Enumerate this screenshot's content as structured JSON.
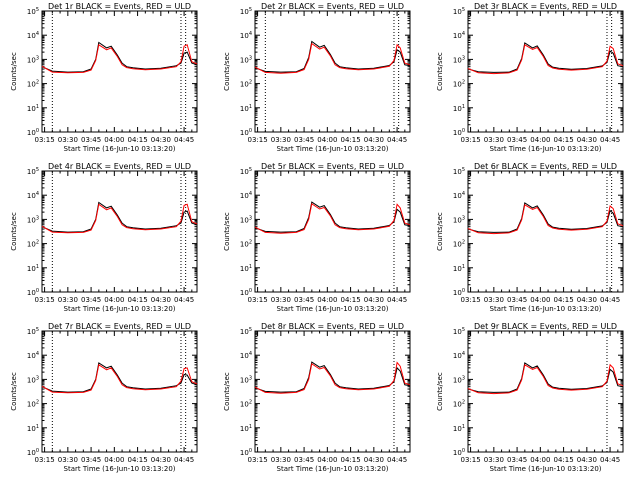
{
  "figure": {
    "colors": {
      "events": "#000000",
      "uld": "#ff0000",
      "background": "#ffffff",
      "axes": "#000000"
    }
  },
  "chart_data": [
    {
      "type": "line",
      "title": "Det 1r BLACK = Events, RED = ULD",
      "xlabel": "Start Time (16-Jun-10 03:13:20)",
      "ylabel": "Counts/sec",
      "xlim": [
        "03:13:20",
        "04:53:20"
      ],
      "x_ticks": [
        "03:15",
        "03:30",
        "03:45",
        "04:00",
        "04:15",
        "04:30",
        "04:45"
      ],
      "y_scale": "log",
      "ylim": [
        1,
        100000
      ],
      "y_ticks": [
        "10^0",
        "10^1",
        "10^2",
        "10^3",
        "10^4",
        "10^5"
      ],
      "vertical_dotted_lines": [
        "03:20",
        "04:43",
        "04:46"
      ],
      "x": [
        "03:13:20",
        "03:20",
        "03:30",
        "03:40",
        "03:45",
        "03:48",
        "03:50",
        "03:55",
        "03:58",
        "04:02",
        "04:05",
        "04:08",
        "04:12",
        "04:20",
        "04:30",
        "04:40",
        "04:43",
        "04:45",
        "04:47",
        "04:50",
        "04:53:20"
      ],
      "series": [
        {
          "name": "Events",
          "color": "#000000",
          "values": [
            500,
            330,
            300,
            310,
            400,
            1000,
            5000,
            3000,
            3500,
            1500,
            700,
            500,
            450,
            400,
            430,
            550,
            700,
            1800,
            2000,
            700,
            600
          ]
        },
        {
          "name": "ULD",
          "color": "#ff0000",
          "values": [
            520,
            300,
            280,
            290,
            360,
            900,
            4000,
            2500,
            3000,
            1300,
            600,
            460,
            410,
            370,
            400,
            500,
            800,
            3500,
            4000,
            800,
            650
          ]
        }
      ]
    },
    {
      "type": "line",
      "title": "Det 2r BLACK = Events, RED = ULD",
      "xlabel": "Start Time (16-Jun-10 03:13:20)",
      "ylabel": "Counts/sec",
      "xlim": [
        "03:13:20",
        "04:53:20"
      ],
      "x_ticks": [
        "03:15",
        "03:30",
        "03:45",
        "04:00",
        "04:15",
        "04:30",
        "04:45"
      ],
      "y_scale": "log",
      "ylim": [
        1,
        100000
      ],
      "y_ticks": [
        "10^0",
        "10^1",
        "10^2",
        "10^3",
        "10^4",
        "10^5"
      ],
      "vertical_dotted_lines": [
        "03:20",
        "04:43",
        "04:46"
      ],
      "x": [
        "03:13:20",
        "03:20",
        "03:30",
        "03:40",
        "03:45",
        "03:48",
        "03:50",
        "03:55",
        "03:58",
        "04:02",
        "04:05",
        "04:08",
        "04:12",
        "04:20",
        "04:30",
        "04:40",
        "04:43",
        "04:45",
        "04:47",
        "04:50",
        "04:53:20"
      ],
      "series": [
        {
          "name": "Events",
          "color": "#000000",
          "values": [
            450,
            320,
            300,
            310,
            420,
            1200,
            5500,
            3200,
            3800,
            1600,
            700,
            500,
            450,
            400,
            430,
            560,
            800,
            2500,
            2000,
            600,
            550
          ]
        },
        {
          "name": "ULD",
          "color": "#ff0000",
          "values": [
            480,
            290,
            270,
            290,
            380,
            1000,
            4500,
            2700,
            3200,
            1400,
            600,
            460,
            410,
            370,
            400,
            520,
            900,
            4000,
            3000,
            700,
            600
          ]
        }
      ]
    },
    {
      "type": "line",
      "title": "Det 3r BLACK = Events, RED = ULD",
      "xlabel": "Start Time (16-Jun-10 03:13:20)",
      "ylabel": "Counts/sec",
      "xlim": [
        "03:13:20",
        "04:53:20"
      ],
      "x_ticks": [
        "03:15",
        "03:30",
        "03:45",
        "04:00",
        "04:15",
        "04:30",
        "04:45"
      ],
      "y_scale": "log",
      "ylim": [
        1,
        100000
      ],
      "y_ticks": [
        "10^0",
        "10^1",
        "10^2",
        "10^3",
        "10^4",
        "10^5"
      ],
      "vertical_dotted_lines": [
        "04:43",
        "04:46"
      ],
      "x": [
        "03:13:20",
        "03:20",
        "03:30",
        "03:40",
        "03:45",
        "03:48",
        "03:50",
        "03:55",
        "03:58",
        "04:02",
        "04:05",
        "04:08",
        "04:12",
        "04:20",
        "04:30",
        "04:40",
        "04:43",
        "04:45",
        "04:47",
        "04:50",
        "04:53:20"
      ],
      "series": [
        {
          "name": "Events",
          "color": "#000000",
          "values": [
            400,
            310,
            290,
            300,
            400,
            1100,
            4800,
            3000,
            3600,
            1500,
            650,
            480,
            430,
            390,
            420,
            540,
            750,
            2200,
            1800,
            550,
            500
          ]
        },
        {
          "name": "ULD",
          "color": "#ff0000",
          "values": [
            420,
            280,
            260,
            280,
            360,
            950,
            4000,
            2600,
            3100,
            1300,
            560,
            440,
            390,
            360,
            390,
            500,
            850,
            3500,
            2800,
            650,
            550
          ]
        }
      ]
    },
    {
      "type": "line",
      "title": "Det 4r BLACK = Events, RED = ULD",
      "xlabel": "Start Time (16-Jun-10 03:13:20)",
      "ylabel": "Counts/sec",
      "xlim": [
        "03:13:20",
        "04:53:20"
      ],
      "x_ticks": [
        "03:15",
        "03:30",
        "03:45",
        "04:00",
        "04:15",
        "04:30",
        "04:45"
      ],
      "y_scale": "log",
      "ylim": [
        1,
        100000
      ],
      "y_ticks": [
        "10^0",
        "10^1",
        "10^2",
        "10^3",
        "10^4",
        "10^5"
      ],
      "vertical_dotted_lines": [
        "03:20",
        "04:43",
        "04:46"
      ],
      "x": [
        "03:13:20",
        "03:20",
        "03:30",
        "03:40",
        "03:45",
        "03:48",
        "03:50",
        "03:55",
        "03:58",
        "04:02",
        "04:05",
        "04:08",
        "04:12",
        "04:20",
        "04:30",
        "04:40",
        "04:43",
        "04:45",
        "04:47",
        "04:50",
        "04:53:20"
      ],
      "series": [
        {
          "name": "Events",
          "color": "#000000",
          "values": [
            500,
            330,
            300,
            310,
            400,
            1000,
            5000,
            3000,
            3500,
            1500,
            700,
            500,
            450,
            400,
            430,
            550,
            700,
            2000,
            2200,
            700,
            600
          ]
        },
        {
          "name": "ULD",
          "color": "#ff0000",
          "values": [
            520,
            300,
            280,
            290,
            360,
            900,
            4200,
            2500,
            3000,
            1300,
            600,
            460,
            410,
            370,
            400,
            500,
            850,
            3800,
            4200,
            800,
            650
          ]
        }
      ]
    },
    {
      "type": "line",
      "title": "Det 5r BLACK = Events, RED = ULD",
      "xlabel": "Start Time (16-Jun-10 03:13:20)",
      "ylabel": "Counts/sec",
      "xlim": [
        "03:13:20",
        "04:53:20"
      ],
      "x_ticks": [
        "03:15",
        "03:30",
        "03:45",
        "04:00",
        "04:15",
        "04:30",
        "04:45"
      ],
      "y_scale": "log",
      "ylim": [
        1,
        100000
      ],
      "y_ticks": [
        "10^0",
        "10^1",
        "10^2",
        "10^3",
        "10^4",
        "10^5"
      ],
      "vertical_dotted_lines": [
        "04:43"
      ],
      "x": [
        "03:13:20",
        "03:20",
        "03:30",
        "03:40",
        "03:45",
        "03:48",
        "03:50",
        "03:55",
        "03:58",
        "04:02",
        "04:05",
        "04:08",
        "04:12",
        "04:20",
        "04:30",
        "04:40",
        "04:43",
        "04:45",
        "04:47",
        "04:50",
        "04:53:20"
      ],
      "series": [
        {
          "name": "Events",
          "color": "#000000",
          "values": [
            450,
            320,
            300,
            310,
            420,
            1200,
            5200,
            3200,
            3700,
            1600,
            700,
            500,
            450,
            400,
            430,
            560,
            800,
            2600,
            2000,
            600,
            550
          ]
        },
        {
          "name": "ULD",
          "color": "#ff0000",
          "values": [
            480,
            290,
            270,
            290,
            380,
            1000,
            4400,
            2700,
            3100,
            1400,
            600,
            460,
            410,
            370,
            400,
            520,
            900,
            4200,
            3000,
            700,
            600
          ]
        }
      ]
    },
    {
      "type": "line",
      "title": "Det 6r BLACK = Events, RED = ULD",
      "xlabel": "Start Time (16-Jun-10 03:13:20)",
      "ylabel": "Counts/sec",
      "xlim": [
        "03:13:20",
        "04:53:20"
      ],
      "x_ticks": [
        "03:15",
        "03:30",
        "03:45",
        "04:00",
        "04:15",
        "04:30",
        "04:45"
      ],
      "y_scale": "log",
      "ylim": [
        1,
        100000
      ],
      "y_ticks": [
        "10^0",
        "10^1",
        "10^2",
        "10^3",
        "10^4",
        "10^5"
      ],
      "vertical_dotted_lines": [
        "04:43",
        "04:46"
      ],
      "x": [
        "03:13:20",
        "03:20",
        "03:30",
        "03:40",
        "03:45",
        "03:48",
        "03:50",
        "03:55",
        "03:58",
        "04:02",
        "04:05",
        "04:08",
        "04:12",
        "04:20",
        "04:30",
        "04:40",
        "04:43",
        "04:45",
        "04:47",
        "04:50",
        "04:53:20"
      ],
      "series": [
        {
          "name": "Events",
          "color": "#000000",
          "values": [
            400,
            310,
            290,
            300,
            400,
            1100,
            4800,
            3000,
            3600,
            1500,
            650,
            480,
            430,
            390,
            420,
            540,
            750,
            2300,
            1800,
            550,
            500
          ]
        },
        {
          "name": "ULD",
          "color": "#ff0000",
          "values": [
            420,
            280,
            260,
            280,
            360,
            950,
            4000,
            2600,
            3100,
            1300,
            560,
            440,
            390,
            360,
            390,
            500,
            850,
            3600,
            2800,
            650,
            550
          ]
        }
      ]
    },
    {
      "type": "line",
      "title": "Det 7r BLACK = Events, RED = ULD",
      "xlabel": "Start Time (16-Jun-10 03:13:20)",
      "ylabel": "Counts/sec",
      "xlim": [
        "03:13:20",
        "04:53:20"
      ],
      "x_ticks": [
        "03:15",
        "03:30",
        "03:45",
        "04:00",
        "04:15",
        "04:30",
        "04:45"
      ],
      "y_scale": "log",
      "ylim": [
        1,
        100000
      ],
      "y_ticks": [
        "10^0",
        "10^1",
        "10^2",
        "10^3",
        "10^4",
        "10^5"
      ],
      "vertical_dotted_lines": [
        "03:20",
        "04:43",
        "04:46"
      ],
      "x": [
        "03:13:20",
        "03:20",
        "03:30",
        "03:40",
        "03:45",
        "03:48",
        "03:50",
        "03:55",
        "03:58",
        "04:02",
        "04:05",
        "04:08",
        "04:12",
        "04:20",
        "04:30",
        "04:40",
        "04:43",
        "04:45",
        "04:47",
        "04:50",
        "04:53:20"
      ],
      "series": [
        {
          "name": "Events",
          "color": "#000000",
          "values": [
            500,
            330,
            300,
            310,
            400,
            1000,
            4800,
            3000,
            3500,
            1500,
            700,
            500,
            450,
            400,
            430,
            550,
            700,
            1600,
            1500,
            700,
            600
          ]
        },
        {
          "name": "ULD",
          "color": "#ff0000",
          "values": [
            520,
            300,
            280,
            290,
            360,
            900,
            4000,
            2500,
            3000,
            1300,
            600,
            460,
            410,
            370,
            400,
            500,
            850,
            2800,
            3000,
            800,
            650
          ]
        }
      ]
    },
    {
      "type": "line",
      "title": "Det 8r BLACK = Events, RED = ULD",
      "xlabel": "Start Time (16-Jun-10 03:13:20)",
      "ylabel": "Counts/sec",
      "xlim": [
        "03:13:20",
        "04:53:20"
      ],
      "x_ticks": [
        "03:15",
        "03:30",
        "03:45",
        "04:00",
        "04:15",
        "04:30",
        "04:45"
      ],
      "y_scale": "log",
      "ylim": [
        1,
        100000
      ],
      "y_ticks": [
        "10^0",
        "10^1",
        "10^2",
        "10^3",
        "10^4",
        "10^5"
      ],
      "vertical_dotted_lines": [
        "04:43"
      ],
      "x": [
        "03:13:20",
        "03:20",
        "03:30",
        "03:40",
        "03:45",
        "03:48",
        "03:50",
        "03:55",
        "03:58",
        "04:02",
        "04:05",
        "04:08",
        "04:12",
        "04:20",
        "04:30",
        "04:40",
        "04:43",
        "04:45",
        "04:47",
        "04:50",
        "04:53:20"
      ],
      "series": [
        {
          "name": "Events",
          "color": "#000000",
          "values": [
            450,
            320,
            300,
            310,
            420,
            1200,
            5200,
            3200,
            3700,
            1600,
            700,
            500,
            450,
            400,
            430,
            560,
            800,
            3000,
            2200,
            600,
            550
          ]
        },
        {
          "name": "ULD",
          "color": "#ff0000",
          "values": [
            480,
            290,
            270,
            290,
            380,
            1000,
            4400,
            2700,
            3100,
            1400,
            600,
            460,
            410,
            370,
            400,
            520,
            900,
            5000,
            3500,
            700,
            600
          ]
        }
      ]
    },
    {
      "type": "line",
      "title": "Det 9r BLACK = Events, RED = ULD",
      "xlabel": "Start Time (16-Jun-10 03:13:20)",
      "ylabel": "Counts/sec",
      "xlim": [
        "03:13:20",
        "04:53:20"
      ],
      "x_ticks": [
        "03:15",
        "03:30",
        "03:45",
        "04:00",
        "04:15",
        "04:30",
        "04:45"
      ],
      "y_scale": "log",
      "ylim": [
        1,
        100000
      ],
      "y_ticks": [
        "10^0",
        "10^1",
        "10^2",
        "10^3",
        "10^4",
        "10^5"
      ],
      "vertical_dotted_lines": [
        "04:43"
      ],
      "x": [
        "03:13:20",
        "03:20",
        "03:30",
        "03:40",
        "03:45",
        "03:48",
        "03:50",
        "03:55",
        "03:58",
        "04:02",
        "04:05",
        "04:08",
        "04:12",
        "04:20",
        "04:30",
        "04:40",
        "04:43",
        "04:45",
        "04:47",
        "04:50",
        "04:53:20"
      ],
      "series": [
        {
          "name": "Events",
          "color": "#000000",
          "values": [
            400,
            310,
            290,
            300,
            400,
            1100,
            4800,
            3000,
            3600,
            1500,
            650,
            480,
            430,
            390,
            420,
            540,
            750,
            2600,
            2000,
            550,
            500
          ]
        },
        {
          "name": "ULD",
          "color": "#ff0000",
          "values": [
            420,
            280,
            260,
            280,
            360,
            950,
            4000,
            2600,
            3100,
            1300,
            560,
            440,
            390,
            360,
            390,
            500,
            850,
            4000,
            3000,
            650,
            550
          ]
        }
      ]
    }
  ]
}
